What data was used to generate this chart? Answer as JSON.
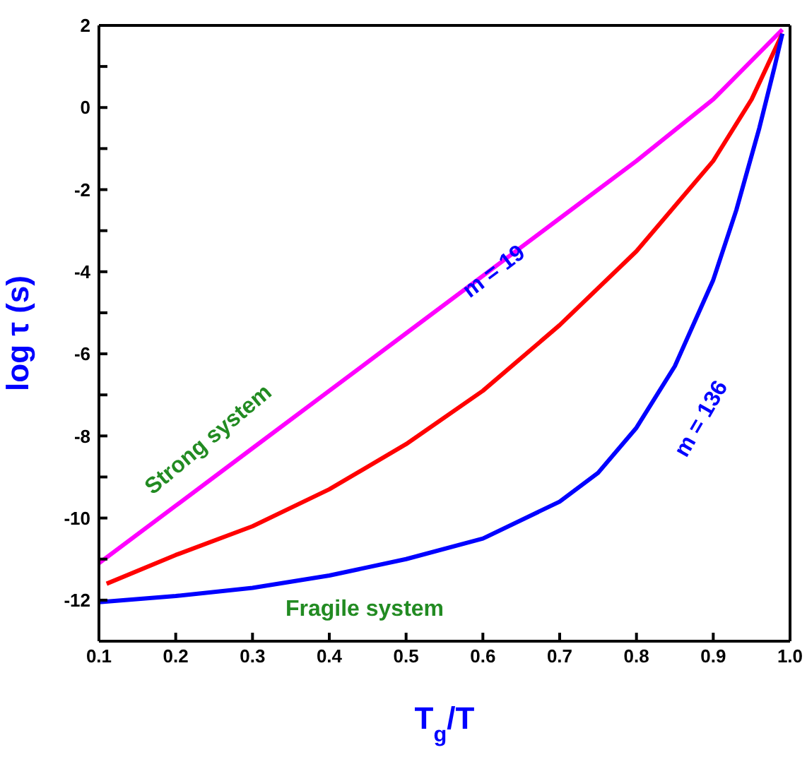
{
  "chart_data": {
    "type": "line",
    "xlabel": "T$_{g}$/T",
    "ylabel": "log τ (s)",
    "xlim": [
      0.1,
      1.0
    ],
    "xticks": [
      0.1,
      0.2,
      0.3,
      0.4,
      0.5,
      0.6,
      0.7,
      0.8,
      0.9,
      {
        "value": 1.0,
        "label": "1.0"
      }
    ],
    "ylim": [
      -13,
      2
    ],
    "yticks": [
      {
        "value": -13,
        "label": null
      },
      -12,
      {
        "value": -11,
        "label": null
      },
      -10,
      {
        "value": -9,
        "label": null
      },
      -8,
      {
        "value": -7,
        "label": null
      },
      -6,
      {
        "value": -5,
        "label": null
      },
      -4,
      {
        "value": -3,
        "label": null
      },
      -2,
      {
        "value": -1,
        "label": null
      },
      0,
      {
        "value": 1,
        "label": null
      },
      2
    ],
    "grid": false,
    "marker": "none",
    "line_style": "solid",
    "series": [
      {
        "color": "#ff00ff",
        "x": [
          0.1,
          0.2,
          0.3,
          0.4,
          0.5,
          0.6,
          0.7,
          0.8,
          0.9,
          0.99
        ],
        "values": [
          -11.1,
          -9.7,
          -8.3,
          -6.9,
          -5.5,
          -4.1,
          -2.7,
          -1.3,
          0.2,
          1.9
        ]
      },
      {
        "color": "#ff0000",
        "x": [
          0.11,
          0.2,
          0.3,
          0.4,
          0.5,
          0.6,
          0.7,
          0.8,
          0.9,
          0.95,
          0.99
        ],
        "values": [
          -11.6,
          -10.9,
          -10.2,
          -9.3,
          -8.2,
          -6.9,
          -5.3,
          -3.5,
          -1.3,
          0.2,
          1.8
        ]
      },
      {
        "color": "#0000ff",
        "x": [
          0.1,
          0.2,
          0.3,
          0.4,
          0.5,
          0.6,
          0.7,
          0.75,
          0.8,
          0.85,
          0.9,
          0.93,
          0.96,
          0.98,
          0.99
        ],
        "values": [
          -12.05,
          -11.9,
          -11.7,
          -11.4,
          -11.0,
          -10.5,
          -9.6,
          -8.9,
          -7.8,
          -6.3,
          -4.2,
          -2.5,
          -0.5,
          1.0,
          1.8
        ]
      }
    ],
    "annotations": [
      "Strong system",
      "m = 19",
      "m = 136",
      "Fragile system"
    ]
  }
}
